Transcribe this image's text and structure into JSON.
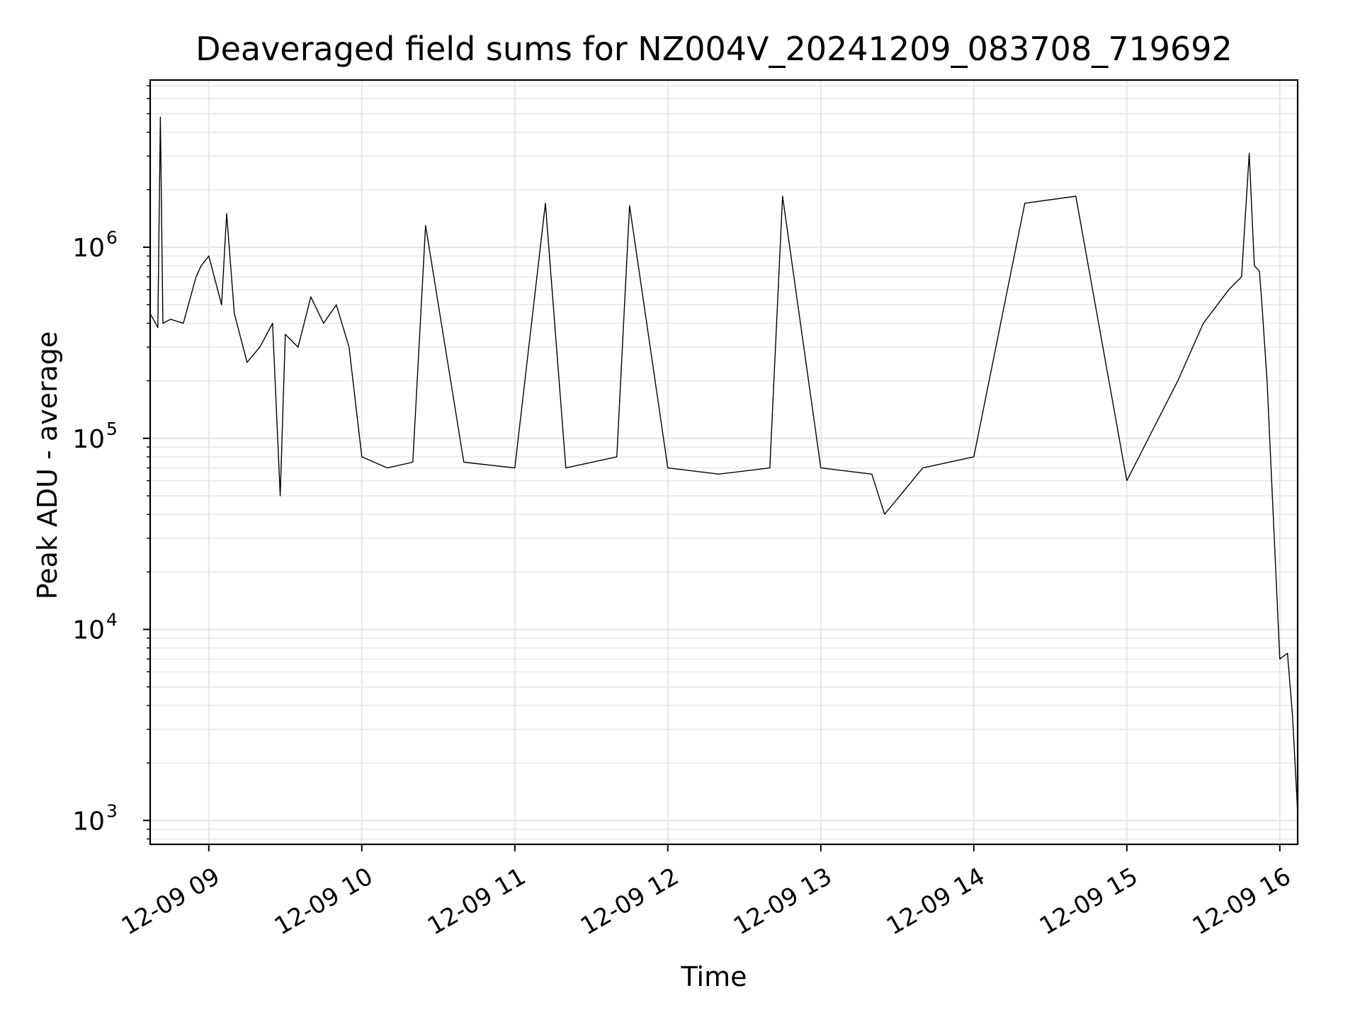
{
  "chart_data": {
    "type": "line",
    "title": "Deaveraged field sums for NZ004V_20241209_083708_719692",
    "xlabel": "Time",
    "ylabel": "Peak ADU - average",
    "yscale": "log",
    "ylim": [
      750,
      7500000
    ],
    "xlim": [
      "2024-12-09 08:37",
      "2024-12-09 16:07"
    ],
    "grid": true,
    "line_color": "#000000",
    "x_ticks": [
      {
        "t": "2024-12-09 09:00",
        "label": "12-09 09"
      },
      {
        "t": "2024-12-09 10:00",
        "label": "12-09 10"
      },
      {
        "t": "2024-12-09 11:00",
        "label": "12-09 11"
      },
      {
        "t": "2024-12-09 12:00",
        "label": "12-09 12"
      },
      {
        "t": "2024-12-09 13:00",
        "label": "12-09 13"
      },
      {
        "t": "2024-12-09 14:00",
        "label": "12-09 14"
      },
      {
        "t": "2024-12-09 15:00",
        "label": "12-09 15"
      },
      {
        "t": "2024-12-09 16:00",
        "label": "12-09 16"
      }
    ],
    "y_ticks": [
      {
        "value": 1000,
        "base": "10",
        "exp": "3"
      },
      {
        "value": 10000,
        "base": "10",
        "exp": "4"
      },
      {
        "value": 100000,
        "base": "10",
        "exp": "5"
      },
      {
        "value": 1000000,
        "base": "10",
        "exp": "6"
      }
    ],
    "series": [
      {
        "x": [
          "2024-12-09 08:37",
          "2024-12-09 08:40",
          "2024-12-09 08:41",
          "2024-12-09 08:42",
          "2024-12-09 08:45",
          "2024-12-09 08:50",
          "2024-12-09 08:55",
          "2024-12-09 08:57",
          "2024-12-09 09:00",
          "2024-12-09 09:05",
          "2024-12-09 09:07",
          "2024-12-09 09:10",
          "2024-12-09 09:15",
          "2024-12-09 09:20",
          "2024-12-09 09:25",
          "2024-12-09 09:28",
          "2024-12-09 09:30",
          "2024-12-09 09:35",
          "2024-12-09 09:40",
          "2024-12-09 09:45",
          "2024-12-09 09:50",
          "2024-12-09 09:55",
          "2024-12-09 10:00",
          "2024-12-09 10:10",
          "2024-12-09 10:20",
          "2024-12-09 10:25",
          "2024-12-09 10:40",
          "2024-12-09 11:00",
          "2024-12-09 11:12",
          "2024-12-09 11:20",
          "2024-12-09 11:40",
          "2024-12-09 11:45",
          "2024-12-09 12:00",
          "2024-12-09 12:20",
          "2024-12-09 12:40",
          "2024-12-09 12:45",
          "2024-12-09 13:00",
          "2024-12-09 13:20",
          "2024-12-09 13:25",
          "2024-12-09 13:40",
          "2024-12-09 14:00",
          "2024-12-09 14:20",
          "2024-12-09 14:40",
          "2024-12-09 15:00",
          "2024-12-09 15:20",
          "2024-12-09 15:30",
          "2024-12-09 15:40",
          "2024-12-09 15:45",
          "2024-12-09 15:48",
          "2024-12-09 15:50",
          "2024-12-09 15:52",
          "2024-12-09 15:53",
          "2024-12-09 15:55",
          "2024-12-09 16:00",
          "2024-12-09 16:03",
          "2024-12-09 16:05",
          "2024-12-09 16:07"
        ],
        "y": [
          450000,
          380000,
          4800000,
          400000,
          420000,
          400000,
          700000,
          800000,
          900000,
          500000,
          1500000,
          450000,
          250000,
          300000,
          400000,
          50000,
          350000,
          300000,
          550000,
          400000,
          500000,
          300000,
          80000,
          70000,
          75000,
          1300000,
          75000,
          70000,
          1700000,
          70000,
          80000,
          1650000,
          70000,
          65000,
          70000,
          1850000,
          70000,
          65000,
          40000,
          70000,
          80000,
          1700000,
          1850000,
          60000,
          200000,
          400000,
          600000,
          700000,
          3100000,
          800000,
          750000,
          500000,
          200000,
          7000,
          7500,
          3500,
          1100
        ]
      }
    ]
  }
}
